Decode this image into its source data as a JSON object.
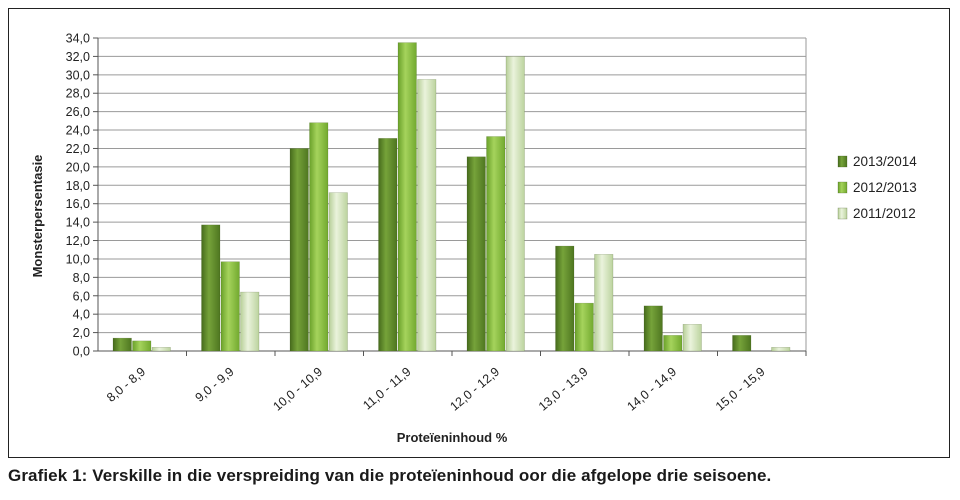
{
  "caption": "Grafiek 1: Verskille in die verspreiding van die proteïeninhoud oor die afgelope drie seisoene.",
  "chart_data": {
    "type": "bar",
    "title": "",
    "xlabel": "Proteïeninhoud %",
    "ylabel": "Monsterpersentasie",
    "ylim": [
      0,
      34
    ],
    "ytick_step": 2,
    "ytick_labels": [
      "0,0",
      "2,0",
      "4,0",
      "6,0",
      "8,0",
      "10,0",
      "12,0",
      "14,0",
      "16,0",
      "18,0",
      "20,0",
      "22,0",
      "24,0",
      "26,0",
      "28,0",
      "30,0",
      "32,0",
      "34,0"
    ],
    "grid": true,
    "legend_position": "right",
    "categories": [
      "8,0 - 8,9",
      "9,0 - 9,9",
      "10,0 - 10,9",
      "11,0 - 11,9",
      "12,0 - 12,9",
      "13,0 - 13,9",
      "14,0 - 14,9",
      "15,0 - 15,9"
    ],
    "series": [
      {
        "name": "2013/2014",
        "color": "#5e8a2a",
        "values": [
          1.4,
          13.7,
          22.0,
          23.1,
          21.1,
          11.4,
          4.9,
          1.7
        ]
      },
      {
        "name": "2012/2013",
        "color": "#86bc3e",
        "values": [
          1.1,
          9.7,
          24.8,
          33.5,
          23.3,
          5.2,
          1.7,
          0.0
        ]
      },
      {
        "name": "2011/2012",
        "color": "#cfe2b4",
        "values": [
          0.4,
          6.4,
          17.2,
          29.5,
          32.0,
          10.5,
          2.9,
          0.4
        ]
      }
    ]
  }
}
